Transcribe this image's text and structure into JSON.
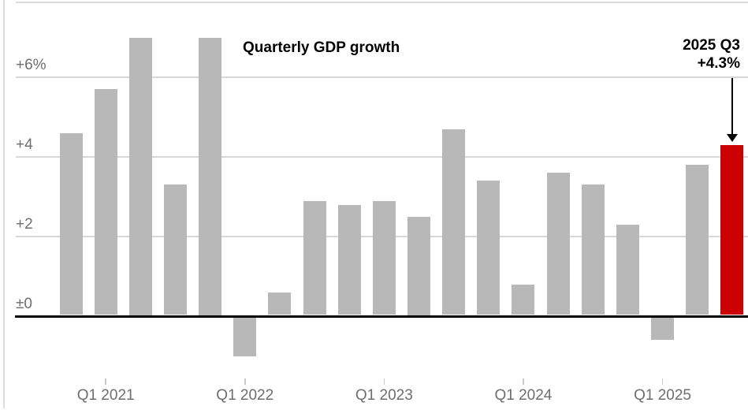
{
  "chart_data": {
    "type": "bar",
    "title": "Quarterly GDP growth",
    "unit": "%",
    "categories": [
      "Q4 2020",
      "Q1 2021",
      "Q2 2021",
      "Q3 2021",
      "Q4 2021",
      "Q1 2022",
      "Q2 2022",
      "Q3 2022",
      "Q4 2022",
      "Q1 2023",
      "Q2 2023",
      "Q3 2023",
      "Q4 2023",
      "Q1 2024",
      "Q2 2024",
      "Q3 2024",
      "Q4 2024",
      "Q1 2025",
      "Q2 2025",
      "Q3 2025"
    ],
    "values": [
      4.6,
      5.7,
      7.0,
      3.3,
      7.0,
      -1.0,
      0.6,
      2.9,
      2.8,
      2.9,
      2.5,
      4.7,
      3.4,
      0.8,
      3.6,
      3.3,
      2.3,
      -0.6,
      3.8,
      4.3
    ],
    "highlight_index": 19,
    "y_ticks": [
      {
        "label": "+6%",
        "value": 6
      },
      {
        "label": "+4",
        "value": 4
      },
      {
        "label": "+2",
        "value": 2
      },
      {
        "label": "±0",
        "value": 0
      }
    ],
    "x_ticks": [
      {
        "label": "Q1 2021",
        "index": 1
      },
      {
        "label": "Q1 2022",
        "index": 5
      },
      {
        "label": "Q1 2023",
        "index": 9
      },
      {
        "label": "Q1 2024",
        "index": 13
      },
      {
        "label": "Q1 2025",
        "index": 17
      }
    ],
    "ylim": [
      -2,
      8
    ],
    "grid": true,
    "annotation": {
      "line1": "2025 Q3",
      "line2": "+4.3%",
      "target_category": "Q3 2025"
    },
    "colors": {
      "bar": "#b8b8b8",
      "highlight": "#cc0000",
      "grid": "#d8d8d8",
      "border": "#dcdcdc",
      "zero_axis": "#000000",
      "labels": "#6e6e6e",
      "text": "#000000"
    }
  }
}
